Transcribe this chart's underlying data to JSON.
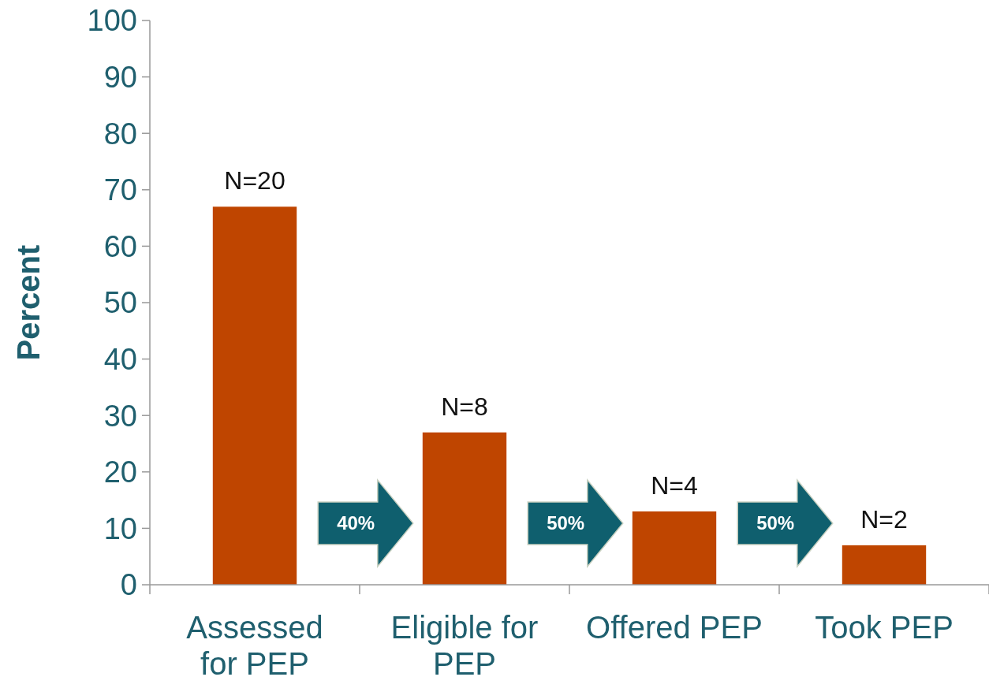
{
  "chart_data": {
    "type": "bar",
    "ylabel": "Percent",
    "categories": [
      "Assessed for PEP",
      "Eligible for PEP",
      "Offered PEP",
      "Took PEP"
    ],
    "values": [
      67,
      27,
      13,
      7
    ],
    "color": "#bf4500",
    "ylim": [
      0,
      100
    ],
    "yticks": [
      0,
      10,
      20,
      30,
      40,
      50,
      60,
      70,
      80,
      90,
      100
    ],
    "grid": false,
    "annotations": [
      {
        "text": "N=20",
        "x": "Assessed for PEP",
        "y": 67
      },
      {
        "text": "N=8",
        "x": "Eligible for PEP",
        "y": 27
      },
      {
        "text": "N=4",
        "x": "Offered PEP",
        "y": 13
      },
      {
        "text": "N=2",
        "x": "Took PEP",
        "y": 7
      },
      "40%",
      "50%",
      "50%"
    ]
  }
}
